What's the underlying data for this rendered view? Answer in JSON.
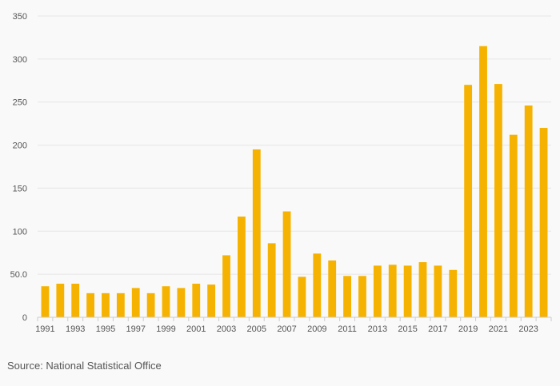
{
  "chart_data": {
    "type": "bar",
    "title": "",
    "xlabel": "",
    "ylabel": "",
    "categories": [
      "1991",
      "1992",
      "1993",
      "1994",
      "1995",
      "1996",
      "1997",
      "1998",
      "1999",
      "2000",
      "2001",
      "2002",
      "2003",
      "2004",
      "2005",
      "2006",
      "2007",
      "2008",
      "2009",
      "2010",
      "2011",
      "2012",
      "2013",
      "2014",
      "2015",
      "2016",
      "2017",
      "2018",
      "2019",
      "2020",
      "2021",
      "2022",
      "2023",
      "2024"
    ],
    "x_tick_labels": [
      "1991",
      "1993",
      "1995",
      "1997",
      "1999",
      "2001",
      "2003",
      "2005",
      "2007",
      "2009",
      "2011",
      "2013",
      "2015",
      "2017",
      "2019",
      "2021",
      "2023"
    ],
    "values": [
      36,
      39,
      39,
      28,
      28,
      28,
      34,
      28,
      36,
      34,
      39,
      38,
      72,
      117,
      195,
      86,
      123,
      47,
      74,
      66,
      48,
      48,
      60,
      61,
      60,
      64,
      60,
      55,
      270,
      315,
      271,
      212,
      246,
      220
    ],
    "ylim": [
      0,
      350
    ],
    "y_ticks": [
      0,
      50,
      100,
      150,
      200,
      250,
      300,
      350
    ],
    "y_tick_labels": [
      "0",
      "50.0",
      "100",
      "150",
      "200",
      "250",
      "300",
      "350"
    ],
    "grid": true,
    "bar_color": "#f5b200",
    "grid_color": "#e6e6e6",
    "axis_color": "#cccccc"
  },
  "source": "Source: National Statistical Office"
}
